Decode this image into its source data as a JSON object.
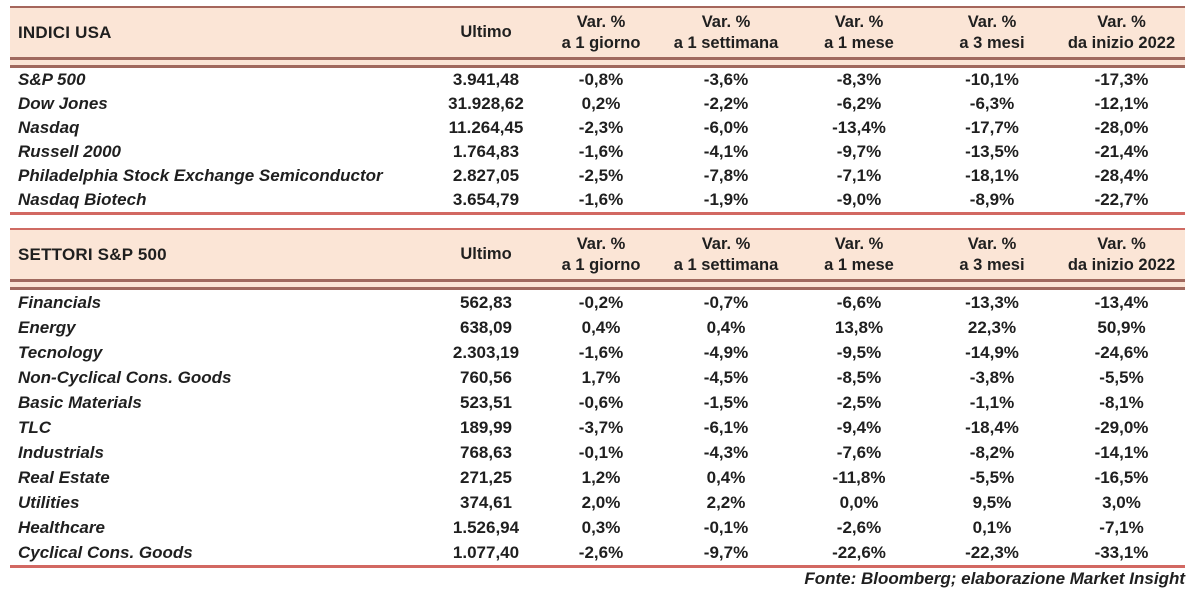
{
  "columns": {
    "ultimo_label": "Ultimo",
    "var_headers": [
      {
        "line1": "Var. %",
        "line2": "a 1 giorno"
      },
      {
        "line1": "Var. %",
        "line2": "a 1 settimana"
      },
      {
        "line1": "Var. %",
        "line2": "a 1 mese"
      },
      {
        "line1": "Var. %",
        "line2": "a 3 mesi"
      },
      {
        "line1": "Var. %",
        "line2": "da inizio 2022"
      }
    ]
  },
  "tables": [
    {
      "title": "INDICI USA",
      "rows": [
        {
          "name": "S&P 500",
          "ultimo": "3.941,48",
          "values": [
            "-0,8%",
            "-3,6%",
            "-8,3%",
            "-10,1%",
            "-17,3%"
          ]
        },
        {
          "name": "Dow Jones",
          "ultimo": "31.928,62",
          "values": [
            "0,2%",
            "-2,2%",
            "-6,2%",
            "-6,3%",
            "-12,1%"
          ]
        },
        {
          "name": "Nasdaq",
          "ultimo": "11.264,45",
          "values": [
            "-2,3%",
            "-6,0%",
            "-13,4%",
            "-17,7%",
            "-28,0%"
          ]
        },
        {
          "name": "Russell 2000",
          "ultimo": "1.764,83",
          "values": [
            "-1,6%",
            "-4,1%",
            "-9,7%",
            "-13,5%",
            "-21,4%"
          ]
        },
        {
          "name": "Philadelphia Stock Exchange Semiconductor",
          "ultimo": "2.827,05",
          "values": [
            "-2,5%",
            "-7,8%",
            "-7,1%",
            "-18,1%",
            "-28,4%"
          ]
        },
        {
          "name": "Nasdaq Biotech",
          "ultimo": "3.654,79",
          "values": [
            "-1,6%",
            "-1,9%",
            "-9,0%",
            "-8,9%",
            "-22,7%"
          ]
        }
      ]
    },
    {
      "title": "SETTORI S&P 500",
      "rows": [
        {
          "name": "Financials",
          "ultimo": "562,83",
          "values": [
            "-0,2%",
            "-0,7%",
            "-6,6%",
            "-13,3%",
            "-13,4%"
          ]
        },
        {
          "name": "Energy",
          "ultimo": "638,09",
          "values": [
            "0,4%",
            "0,4%",
            "13,8%",
            "22,3%",
            "50,9%"
          ]
        },
        {
          "name": "Tecnology",
          "ultimo": "2.303,19",
          "values": [
            "-1,6%",
            "-4,9%",
            "-9,5%",
            "-14,9%",
            "-24,6%"
          ]
        },
        {
          "name": "Non-Cyclical Cons. Goods",
          "ultimo": "760,56",
          "values": [
            "1,7%",
            "-4,5%",
            "-8,5%",
            "-3,8%",
            "-5,5%"
          ]
        },
        {
          "name": "Basic Materials",
          "ultimo": "523,51",
          "values": [
            "-0,6%",
            "-1,5%",
            "-2,5%",
            "-1,1%",
            "-8,1%"
          ]
        },
        {
          "name": "TLC",
          "ultimo": "189,99",
          "values": [
            "-3,7%",
            "-6,1%",
            "-9,4%",
            "-18,4%",
            "-29,0%"
          ]
        },
        {
          "name": "Industrials",
          "ultimo": "768,63",
          "values": [
            "-0,1%",
            "-4,3%",
            "-7,6%",
            "-8,2%",
            "-14,1%"
          ]
        },
        {
          "name": "Real Estate",
          "ultimo": "271,25",
          "values": [
            "1,2%",
            "0,4%",
            "-11,8%",
            "-5,5%",
            "-16,5%"
          ]
        },
        {
          "name": "Utilities",
          "ultimo": "374,61",
          "values": [
            "2,0%",
            "2,2%",
            "0,0%",
            "9,5%",
            "3,0%"
          ]
        },
        {
          "name": "Healthcare",
          "ultimo": "1.526,94",
          "values": [
            "0,3%",
            "-0,1%",
            "-2,6%",
            "0,1%",
            "-7,1%"
          ]
        },
        {
          "name": "Cyclical Cons. Goods",
          "ultimo": "1.077,40",
          "values": [
            "-2,6%",
            "-9,7%",
            "-22,6%",
            "-22,3%",
            "-33,1%"
          ]
        }
      ]
    }
  ],
  "colors": {
    "header_background": "#fbe5d6",
    "header_line_dark": "#a0695e",
    "table_line_red": "#d26862",
    "text": "#1f1f1f"
  },
  "footer": {
    "source_note": "Fonte: Bloomberg; elaborazione Market Insight"
  }
}
